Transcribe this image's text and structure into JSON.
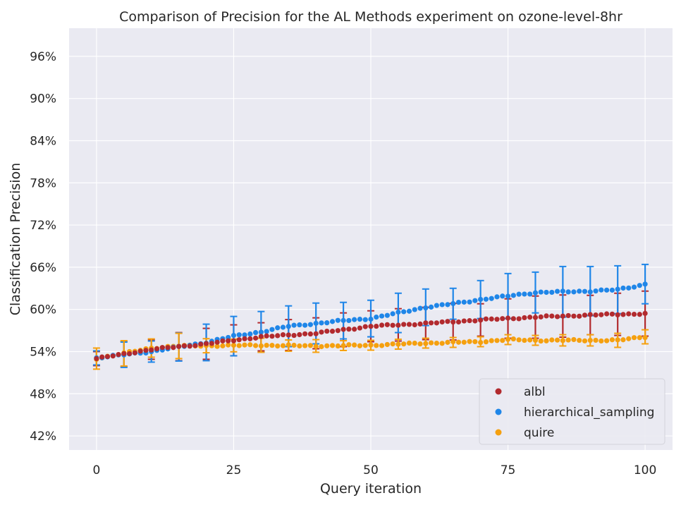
{
  "chart_data": {
    "type": "scatter",
    "title": "Comparison of Precision for the AL Methods experiment on ozone-level-8hr",
    "xlabel": "Query iteration",
    "ylabel": "Classification Precision",
    "xlim": [
      -5,
      105
    ],
    "ylim": [
      0.4,
      1.0
    ],
    "x_ticks": [
      0,
      25,
      50,
      75,
      100
    ],
    "x_tick_labels": [
      "0",
      "25",
      "50",
      "75",
      "100"
    ],
    "y_ticks": [
      0.42,
      0.48,
      0.54,
      0.6,
      0.66,
      0.72,
      0.78,
      0.84,
      0.9,
      0.96
    ],
    "y_tick_labels": [
      "42%",
      "48%",
      "54%",
      "60%",
      "66%",
      "72%",
      "78%",
      "84%",
      "90%",
      "96%"
    ],
    "grid": true,
    "legend_position": "bottom-right",
    "errorbar_every": 5,
    "series": [
      {
        "name": "albl",
        "color": "#b22a2e",
        "anchors": [
          [
            0,
            0.53
          ],
          [
            10,
            0.543
          ],
          [
            20,
            0.551
          ],
          [
            30,
            0.561
          ],
          [
            40,
            0.566
          ],
          [
            50,
            0.576
          ],
          [
            60,
            0.58
          ],
          [
            70,
            0.585
          ],
          [
            80,
            0.589
          ],
          [
            90,
            0.592
          ],
          [
            100,
            0.594
          ]
        ],
        "err": [
          [
            0,
            0.01
          ],
          [
            5,
            0.018
          ],
          [
            10,
            0.014
          ],
          [
            15,
            0.02
          ],
          [
            20,
            0.022
          ],
          [
            25,
            0.022
          ],
          [
            30,
            0.02
          ],
          [
            35,
            0.022
          ],
          [
            40,
            0.022
          ],
          [
            45,
            0.024
          ],
          [
            50,
            0.022
          ],
          [
            55,
            0.023
          ],
          [
            60,
            0.023
          ],
          [
            65,
            0.026
          ],
          [
            70,
            0.023
          ],
          [
            75,
            0.028
          ],
          [
            80,
            0.03
          ],
          [
            85,
            0.03
          ],
          [
            90,
            0.028
          ],
          [
            95,
            0.03
          ],
          [
            100,
            0.032
          ]
        ]
      },
      {
        "name": "hierarchical_sampling",
        "color": "#1f86e8",
        "anchors": [
          [
            0,
            0.531
          ],
          [
            10,
            0.54
          ],
          [
            20,
            0.553
          ],
          [
            25,
            0.562
          ],
          [
            30,
            0.568
          ],
          [
            35,
            0.576
          ],
          [
            40,
            0.58
          ],
          [
            45,
            0.584
          ],
          [
            50,
            0.587
          ],
          [
            55,
            0.595
          ],
          [
            60,
            0.603
          ],
          [
            65,
            0.608
          ],
          [
            70,
            0.614
          ],
          [
            75,
            0.619
          ],
          [
            80,
            0.624
          ],
          [
            85,
            0.625
          ],
          [
            90,
            0.626
          ],
          [
            95,
            0.628
          ],
          [
            99,
            0.634
          ],
          [
            100,
            0.636
          ]
        ],
        "err": [
          [
            0,
            0.01
          ],
          [
            5,
            0.018
          ],
          [
            10,
            0.015
          ],
          [
            15,
            0.02
          ],
          [
            20,
            0.026
          ],
          [
            25,
            0.028
          ],
          [
            30,
            0.029
          ],
          [
            35,
            0.029
          ],
          [
            40,
            0.029
          ],
          [
            45,
            0.026
          ],
          [
            50,
            0.026
          ],
          [
            55,
            0.028
          ],
          [
            60,
            0.026
          ],
          [
            65,
            0.022
          ],
          [
            70,
            0.027
          ],
          [
            75,
            0.032
          ],
          [
            80,
            0.029
          ],
          [
            85,
            0.036
          ],
          [
            90,
            0.035
          ],
          [
            95,
            0.034
          ],
          [
            100,
            0.028
          ]
        ]
      },
      {
        "name": "quire",
        "color": "#f5a00f",
        "anchors": [
          [
            0,
            0.53
          ],
          [
            10,
            0.545
          ],
          [
            15,
            0.548
          ],
          [
            30,
            0.549
          ],
          [
            40,
            0.548
          ],
          [
            50,
            0.549
          ],
          [
            60,
            0.552
          ],
          [
            70,
            0.554
          ],
          [
            75,
            0.557
          ],
          [
            80,
            0.556
          ],
          [
            90,
            0.556
          ],
          [
            95,
            0.556
          ],
          [
            98,
            0.559
          ],
          [
            100,
            0.561
          ]
        ],
        "err": [
          [
            0,
            0.015
          ],
          [
            5,
            0.018
          ],
          [
            10,
            0.013
          ],
          [
            15,
            0.018
          ],
          [
            20,
            0.01
          ],
          [
            25,
            0.009
          ],
          [
            30,
            0.01
          ],
          [
            35,
            0.008
          ],
          [
            40,
            0.009
          ],
          [
            45,
            0.007
          ],
          [
            50,
            0.007
          ],
          [
            55,
            0.007
          ],
          [
            60,
            0.007
          ],
          [
            65,
            0.007
          ],
          [
            70,
            0.007
          ],
          [
            75,
            0.007
          ],
          [
            80,
            0.007
          ],
          [
            85,
            0.008
          ],
          [
            90,
            0.008
          ],
          [
            95,
            0.01
          ],
          [
            100,
            0.01
          ]
        ]
      }
    ]
  }
}
